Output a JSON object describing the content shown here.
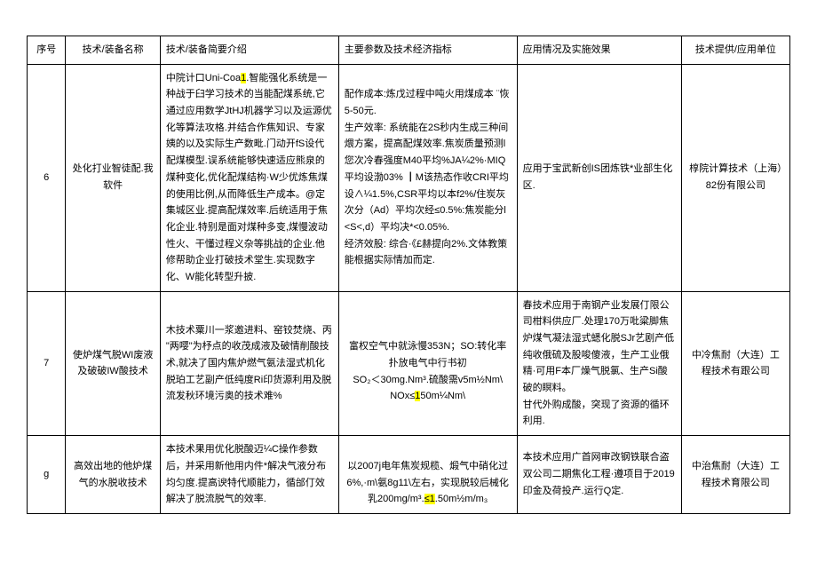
{
  "columns": [
    "序号",
    "技术/装备名称",
    "技术/装备简要介绍",
    "主要参数及技术经济指标",
    "应用情况及实施效果",
    "技术提供/应用单位"
  ],
  "rows": [
    {
      "seq": "6",
      "name": "处化打业智徒配.我软件",
      "intro_a": "中院计口Uni-Coa",
      "intro_hl1": "1",
      "intro_b": ".智能强化系统是一种战于臼学习技术的当能配煤系统,它通过应用数学JtHJ机器学习以及运源优化等算法攻格.并结合作焦知识、专家姨的以及实际生产数毗.门动开fS设代配煤模型.误系统能够快速适应熊泉的煤种变化,优化配煤结构·W少优炼焦煤的使用比例,从而降低生产成本。@定集城区业.提高配煤效率.后统适用于焦化企业.特别是面对煤种多变,煤慢波动性火、干懂过程义杂等挑战的企业.他修帮助企业打破技术堂生.实现数字化、W能化转型升披.",
      "param": "配作成本:炼戊过程中吨火用煤成本 ¨恢5-50元.\n生产效率: 系统能在2S秒内生成三种间煨方案，提高配煤效率.焦炭质量预测l您次冷春强度M40平均%JA¼2%·MIQ平均设渤03% ┃M该热态作收CRI平均设∧¼1.5%,CSR平均以本f2%/住炭灰次分（Ad）平均次经≤0.5%:焦炭能分l<S<,d）平均决*<0.05%.\n经济效股: 综合·《£赫提向2%.文体教策能根据实际情加而定.",
      "app": "应用于宝武新创IS团炼铁*业部生化区.",
      "prov": "椁院计算技术（上海）82份有限公司"
    },
    {
      "seq": "7",
      "name": "使炉煤气脱WI废液及破破IW酸技术",
      "intro": "木技术粟川一浆邀进料、窑铰焚烧、丙 \"两嘤\"为杼点的收茂成液及破情削酸技术,就决了国内焦炉燃气氨法湿式机化脱珀工艺副产低纯度Ri印货源利用及脱流发秋环境污奥的技术难%",
      "param_a": "富权空气中就泳慢353N；SO:转化率扑放电气中行书初\nSO₂＜30mg.Nm³.硫酸需v5m½Nm\\\nNOx≤",
      "param_hl1": "1",
      "param_b": "50m¼Nm\\",
      "app": "春技术应用于南钢产业发展仃限公司柑料供应厂.处理170万吡粱脚焦炉煤气凝法湿式蟋化脱SJr艺剧产低纯收俄硫及股唆傻液，生产工业俄精·可用F本厂燥气脱氯、生产Si酸破的瞑料。\n甘代外购成酸，突现了资源的循环利用.",
      "prov": "中冷焦耐（大连）工程技术有跟公司"
    },
    {
      "seq": "g",
      "name": "高效出地的他炉煤气的水脱收技术",
      "intro": "本技术果用优化脱酸迈¼C操作参数后，并采用新他用内件*解决气液分布均匀度.提高谀特代顺能力，循邰仃效解决了脱流脱气的效率.",
      "param_a": "以2007j电年焦炭规榄、煅气中硝化过6%,·m\\氨8g11\\左右，实现脱较后械化乳200mg/m³.",
      "param_hl1": "≤1",
      "param_b": ".50m½m/m₃",
      "app": "本技术应用广首网审改钢铁联合盗双公司二期焦化工程·遵项目于2019印金及荷投产.运行Q定.",
      "prov": "中治焦耐（大连）工程技术育限公司"
    }
  ]
}
